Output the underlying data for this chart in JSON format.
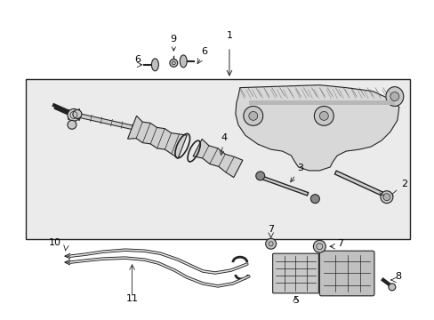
{
  "bg_color": "#ffffff",
  "box_bg": "#e8e8e8",
  "lc": "#222222",
  "fig_width": 4.89,
  "fig_height": 3.6,
  "dpi": 100
}
